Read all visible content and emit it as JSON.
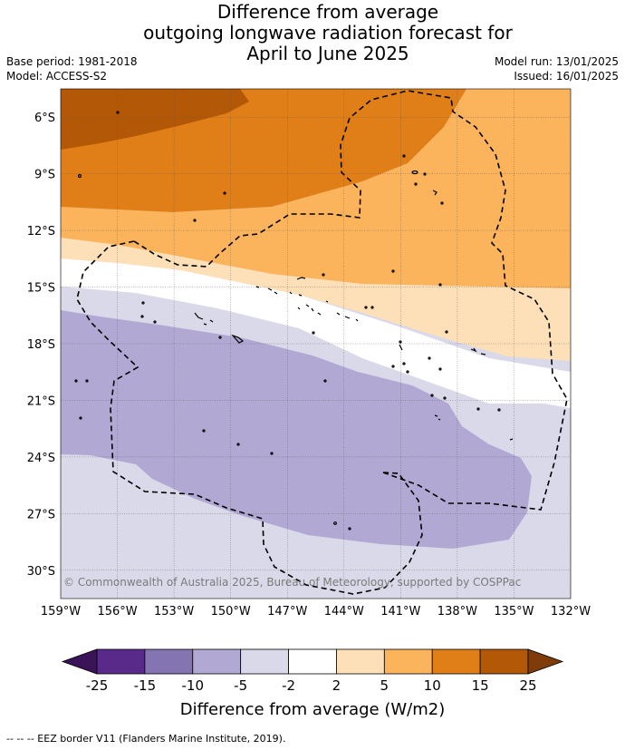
{
  "title_lines": [
    "Difference from average",
    "outgoing longwave radiation forecast for",
    "April to June 2025"
  ],
  "base_period": "Base period: 1981-2018",
  "model": "Model: ACCESS-S2",
  "model_run": "Model run: 13/01/2025",
  "issued": "Issued: 16/01/2025",
  "copyright": "© Commonwealth of Australia 2025, Bureau of Meteorology, supported by COSPPac",
  "map": {
    "lon_ticks": [
      "159°W",
      "156°W",
      "153°W",
      "150°W",
      "147°W",
      "144°W",
      "141°W",
      "138°W",
      "135°W",
      "132°W"
    ],
    "lat_ticks": [
      "6°S",
      "9°S",
      "12°S",
      "15°S",
      "18°S",
      "21°S",
      "24°S",
      "27°S",
      "30°S"
    ],
    "lon_range": [
      -159,
      -132
    ],
    "lat_range": [
      -4.5,
      -31.5
    ]
  },
  "colorbar": {
    "label": "Difference from average (W/m2)",
    "ticks": [
      "-25",
      "-15",
      "-10",
      "-5",
      "-2",
      "2",
      "5",
      "10",
      "15",
      "25"
    ],
    "colors": [
      "#3a1358",
      "#5a2a8a",
      "#8474b2",
      "#b1a9d3",
      "#d9d9ea",
      "#ffffff",
      "#fde0b8",
      "#fbb35c",
      "#e07f18",
      "#b35806",
      "#7f3b08"
    ]
  },
  "footer": "--  --  -- EEZ border V11 (Flanders Marine Institute, 2019)."
}
